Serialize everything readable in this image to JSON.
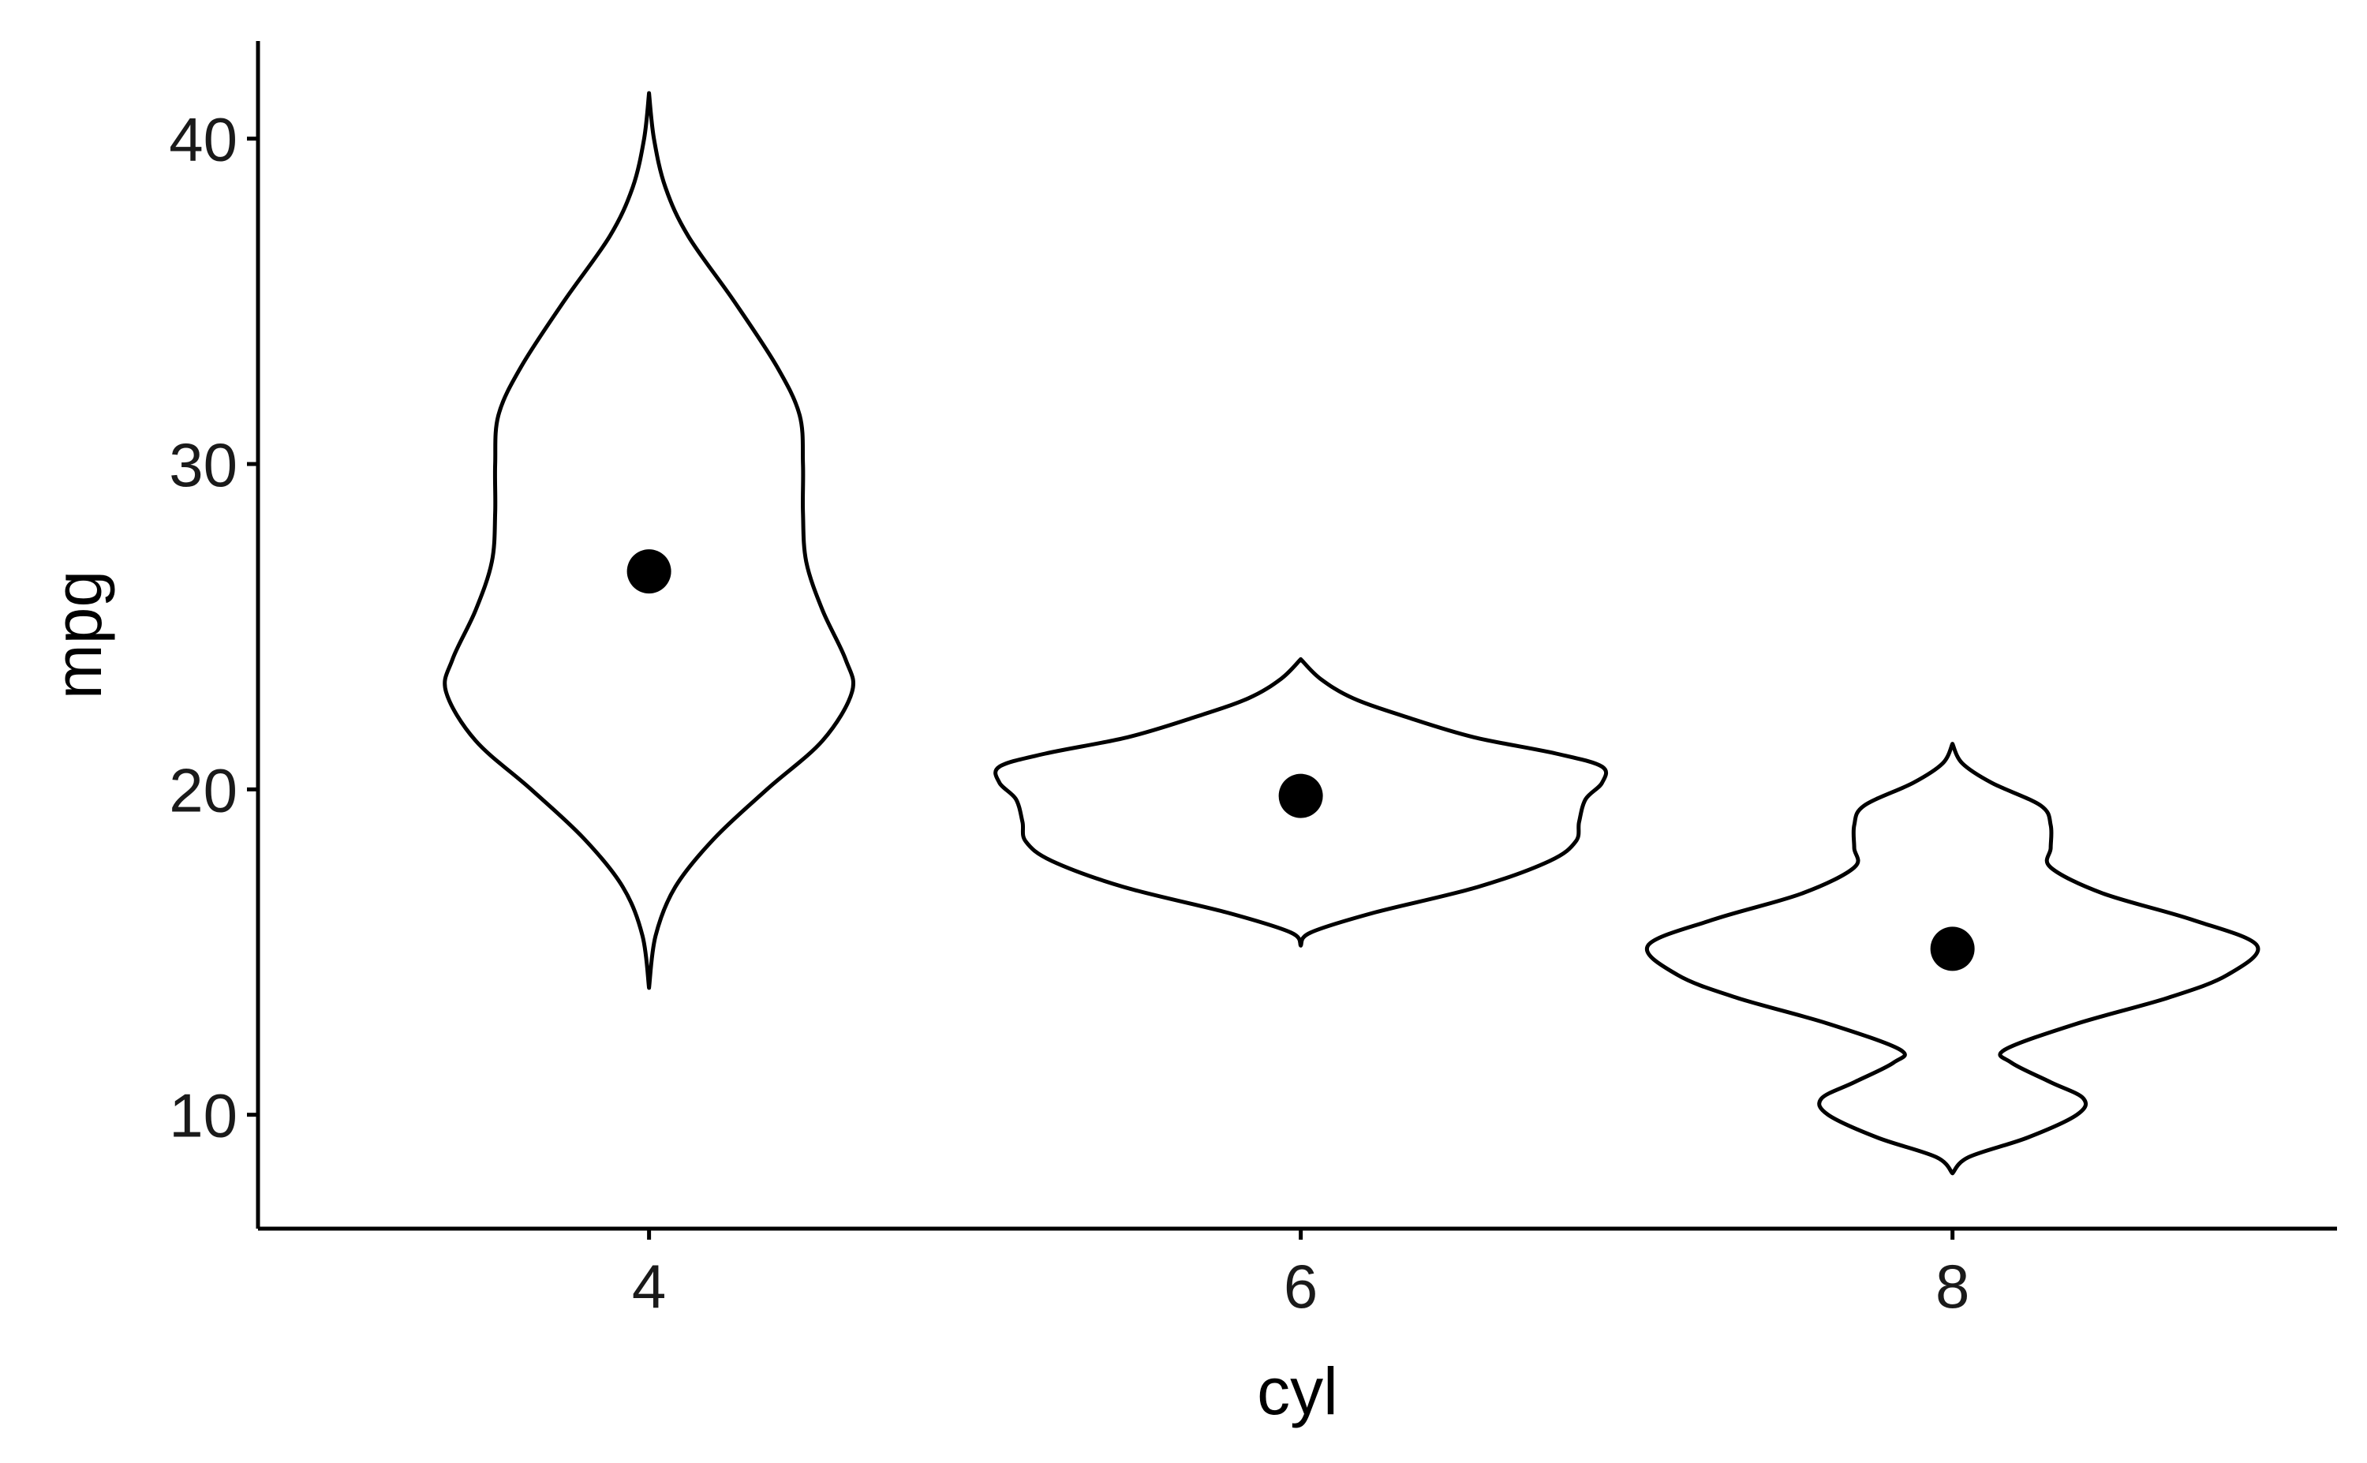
{
  "chart_data": {
    "type": "violin",
    "xlabel": "cyl",
    "ylabel": "mpg",
    "categories": [
      "4",
      "6",
      "8"
    ],
    "ylim": [
      6.5,
      43
    ],
    "y_ticks": [
      10,
      20,
      30,
      40
    ],
    "y_tick_labels": [
      "10",
      "20",
      "30",
      "40"
    ],
    "legend": "none",
    "grid": false,
    "violins": [
      {
        "category": "4",
        "min": 13.9,
        "max": 41.4,
        "mean": 26.7,
        "density_profile": [
          [
            13.9,
            0.0
          ],
          [
            15.5,
            0.02
          ],
          [
            17,
            0.08
          ],
          [
            18.5,
            0.2
          ],
          [
            20,
            0.36
          ],
          [
            21.5,
            0.53
          ],
          [
            23,
            0.62
          ],
          [
            24,
            0.6
          ],
          [
            25.5,
            0.53
          ],
          [
            27,
            0.48
          ],
          [
            28.5,
            0.47
          ],
          [
            30,
            0.47
          ],
          [
            31.5,
            0.46
          ],
          [
            33,
            0.39
          ],
          [
            35,
            0.26
          ],
          [
            37,
            0.12
          ],
          [
            38.5,
            0.05
          ],
          [
            40,
            0.015
          ],
          [
            41.4,
            0.0
          ]
        ]
      },
      {
        "category": "6",
        "min": 15.2,
        "max": 24.0,
        "mean": 19.8,
        "density_profile": [
          [
            15.2,
            0.0
          ],
          [
            15.6,
            0.03
          ],
          [
            16.2,
            0.22
          ],
          [
            17.0,
            0.54
          ],
          [
            17.8,
            0.76
          ],
          [
            18.4,
            0.84
          ],
          [
            19.0,
            0.85
          ],
          [
            19.7,
            0.87
          ],
          [
            20.2,
            0.92
          ],
          [
            20.7,
            0.92
          ],
          [
            21.1,
            0.78
          ],
          [
            21.6,
            0.53
          ],
          [
            22.2,
            0.33
          ],
          [
            22.8,
            0.16
          ],
          [
            23.4,
            0.06
          ],
          [
            24.0,
            0.0
          ]
        ]
      },
      {
        "category": "8",
        "min": 8.2,
        "max": 21.4,
        "mean": 15.1,
        "density_profile": [
          [
            8.2,
            0.0
          ],
          [
            8.7,
            0.05
          ],
          [
            9.3,
            0.23
          ],
          [
            10.0,
            0.38
          ],
          [
            10.5,
            0.4
          ],
          [
            11.0,
            0.3
          ],
          [
            11.6,
            0.18
          ],
          [
            12.0,
            0.16
          ],
          [
            12.8,
            0.38
          ],
          [
            13.6,
            0.66
          ],
          [
            14.3,
            0.84
          ],
          [
            15.2,
            0.93
          ],
          [
            16.0,
            0.73
          ],
          [
            16.8,
            0.46
          ],
          [
            17.6,
            0.3
          ],
          [
            18.2,
            0.3
          ],
          [
            18.9,
            0.3
          ],
          [
            19.5,
            0.27
          ],
          [
            20.2,
            0.12
          ],
          [
            20.8,
            0.03
          ],
          [
            21.4,
            0.0
          ]
        ]
      }
    ],
    "colors": {
      "outline": "#000000",
      "point": "#000000",
      "background": "#ffffff"
    }
  }
}
